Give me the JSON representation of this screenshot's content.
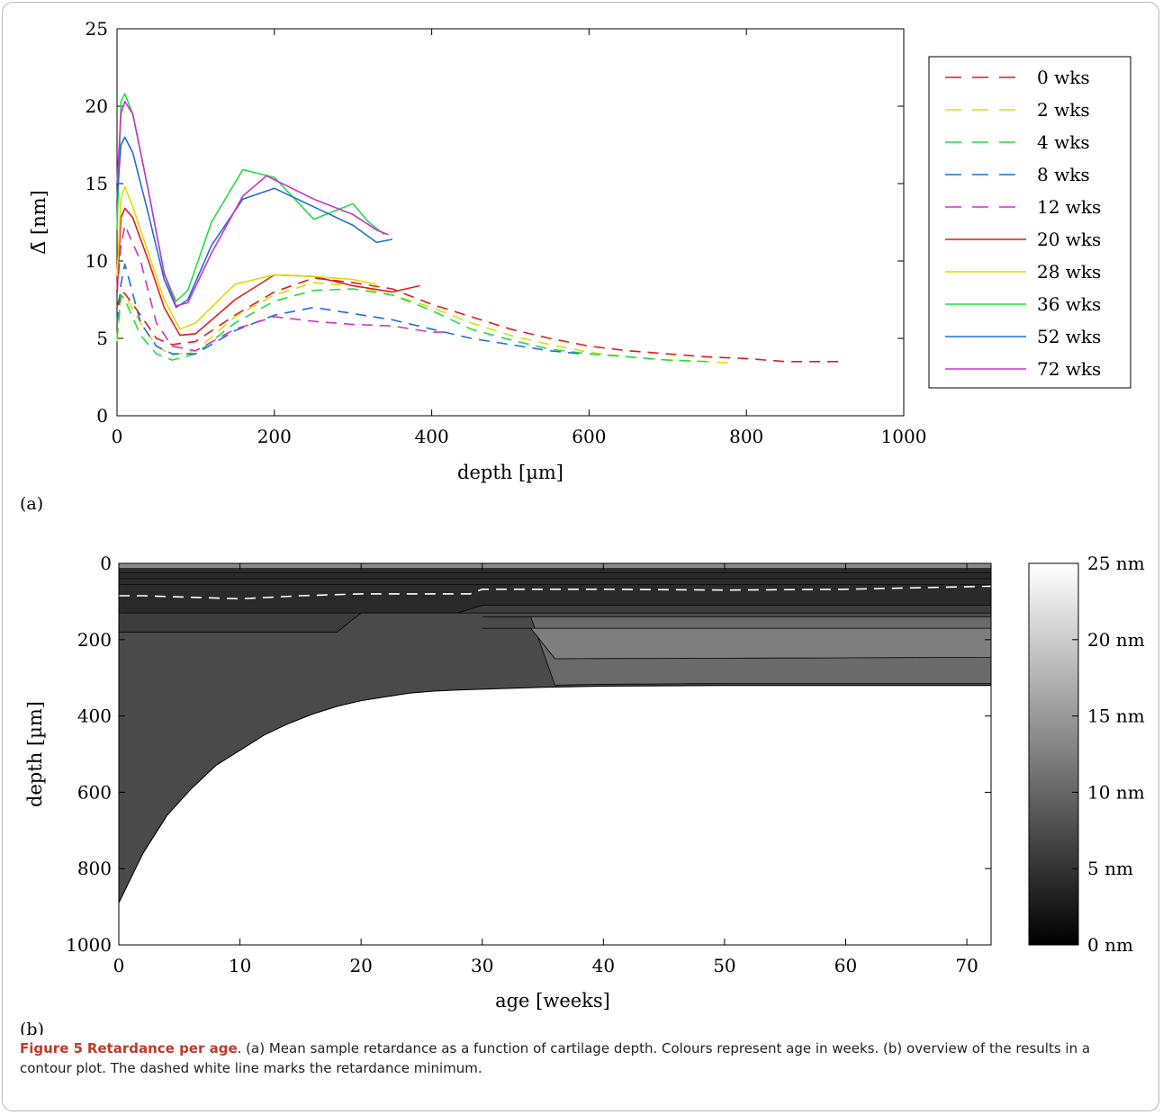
{
  "caption": {
    "figure_label": "Figure 5",
    "title": "Retardance per age",
    "text": ". (a) Mean sample retardance as a function of cartilage depth. Colours represent age in weeks. (b) overview of the results in a contour plot. The dashed white line marks the retardance minimum."
  },
  "chart_data": [
    {
      "panel": "(a)",
      "type": "line",
      "xlabel": "depth [µm]",
      "ylabel": "Δ̄ [nm]",
      "xlim": [
        0,
        1000
      ],
      "ylim": [
        0,
        25
      ],
      "xticks": [
        "0",
        "200",
        "400",
        "600",
        "800",
        "1000"
      ],
      "yticks": [
        "0",
        "5",
        "10",
        "15",
        "20",
        "25"
      ],
      "grid": false,
      "legend": "top-right",
      "series": [
        {
          "name": "0 wks",
          "color": "#e41a1c",
          "dash": "dashed",
          "x": [
            0,
            5,
            10,
            30,
            50,
            70,
            100,
            150,
            200,
            250,
            300,
            350,
            400,
            450,
            500,
            550,
            600,
            650,
            700,
            750,
            800,
            850,
            900,
            920
          ],
          "y": [
            7,
            8,
            7.9,
            6.5,
            5,
            4.6,
            4.8,
            6.5,
            8,
            8.9,
            8.6,
            8.2,
            7.2,
            6.4,
            5.6,
            5.0,
            4.5,
            4.2,
            4.0,
            3.8,
            3.7,
            3.5,
            3.5,
            3.5
          ]
        },
        {
          "name": "2 wks",
          "color": "#d8e000",
          "dash": "dashed",
          "x": [
            0,
            5,
            10,
            30,
            50,
            70,
            100,
            150,
            200,
            250,
            300,
            350,
            400,
            450,
            500,
            550,
            600,
            650,
            700,
            750,
            780
          ],
          "y": [
            4.8,
            7.5,
            7.8,
            6,
            4.5,
            3.9,
            4.2,
            6.4,
            7.8,
            8.6,
            8.4,
            7.8,
            7.0,
            6.0,
            5.2,
            4.6,
            4.1,
            3.8,
            3.6,
            3.5,
            3.4
          ]
        },
        {
          "name": "4 wks",
          "color": "#22dd44",
          "dash": "dashed",
          "x": [
            0,
            5,
            10,
            30,
            50,
            70,
            100,
            150,
            200,
            250,
            300,
            350,
            400,
            450,
            500,
            550,
            600,
            650,
            700,
            750
          ],
          "y": [
            5,
            7.8,
            7.5,
            5.2,
            4.0,
            3.6,
            4.0,
            6.0,
            7.4,
            8.1,
            8.2,
            7.8,
            6.8,
            5.6,
            4.9,
            4.3,
            4.0,
            3.8,
            3.6,
            3.5
          ]
        },
        {
          "name": "8 wks",
          "color": "#1e6fd9",
          "dash": "dashed",
          "x": [
            0,
            5,
            10,
            30,
            50,
            70,
            100,
            150,
            200,
            250,
            300,
            350,
            400,
            450,
            500,
            550,
            590
          ],
          "y": [
            6,
            8.5,
            9.8,
            6.0,
            4.5,
            4.0,
            4.0,
            5.5,
            6.5,
            7.0,
            6.6,
            6.2,
            5.6,
            5.0,
            4.6,
            4.2,
            4.0
          ]
        },
        {
          "name": "12 wks",
          "color": "#cc33cc",
          "dash": "dashed",
          "x": [
            0,
            5,
            10,
            30,
            50,
            70,
            100,
            150,
            200,
            250,
            300,
            350,
            400,
            420
          ],
          "y": [
            8,
            11,
            12.3,
            10.0,
            6.0,
            4.5,
            4.2,
            5.6,
            6.4,
            6.1,
            5.9,
            5.8,
            5.4,
            5.4
          ]
        },
        {
          "name": "20 wks",
          "color": "#e41a1c",
          "dash": "solid",
          "x": [
            0,
            5,
            10,
            20,
            40,
            60,
            80,
            100,
            150,
            200,
            250,
            300,
            350,
            385
          ],
          "y": [
            8,
            12.8,
            13.4,
            12.8,
            10,
            7,
            5.2,
            5.3,
            7.5,
            9.1,
            9.0,
            8.4,
            8.0,
            8.4
          ]
        },
        {
          "name": "28 wks",
          "color": "#d8e000",
          "dash": "solid",
          "x": [
            0,
            5,
            10,
            20,
            40,
            60,
            80,
            100,
            150,
            200,
            250,
            300,
            330
          ],
          "y": [
            9,
            14.0,
            14.8,
            13.5,
            10.5,
            7.5,
            5.6,
            6.0,
            8.5,
            9.1,
            9.0,
            8.8,
            8.5
          ]
        },
        {
          "name": "36 wks",
          "color": "#22dd44",
          "dash": "solid",
          "x": [
            0,
            5,
            10,
            20,
            40,
            60,
            75,
            90,
            120,
            160,
            200,
            250,
            300,
            320,
            340
          ],
          "y": [
            12,
            20.3,
            20.8,
            19.5,
            14.5,
            9.2,
            7.4,
            8.1,
            12.5,
            15.9,
            15.4,
            12.7,
            13.7,
            12.5,
            11.7
          ]
        },
        {
          "name": "52 wks",
          "color": "#1e6fd9",
          "dash": "solid",
          "x": [
            0,
            5,
            10,
            20,
            40,
            60,
            75,
            90,
            120,
            160,
            200,
            250,
            300,
            330,
            350
          ],
          "y": [
            14,
            17.5,
            18.0,
            17.0,
            13.0,
            8.8,
            7.0,
            7.5,
            11.0,
            14.0,
            14.7,
            13.5,
            12.3,
            11.2,
            11.4
          ]
        },
        {
          "name": "72 wks",
          "color": "#cc33cc",
          "dash": "solid",
          "x": [
            0,
            5,
            10,
            20,
            40,
            60,
            75,
            90,
            120,
            160,
            190,
            250,
            300,
            330,
            345
          ],
          "y": [
            15,
            19.5,
            20.3,
            19.5,
            14.5,
            9.2,
            7.1,
            7.3,
            10.5,
            14.2,
            15.5,
            14.0,
            13.0,
            12.0,
            11.7
          ]
        }
      ]
    },
    {
      "panel": "(b)",
      "type": "heatmap",
      "xlabel": "age [weeks]",
      "ylabel": "depth [µm]",
      "xlim": [
        0,
        72
      ],
      "ylim": [
        1000,
        0
      ],
      "xticks": [
        "0",
        "10",
        "20",
        "30",
        "40",
        "50",
        "60",
        "70"
      ],
      "yticks": [
        "0",
        "200",
        "400",
        "600",
        "800",
        "1000"
      ],
      "colorbar": {
        "min": 0,
        "max": 25,
        "ticks": [
          "0 nm",
          "5 nm",
          "10 nm",
          "15 nm",
          "20 nm",
          "25 nm"
        ]
      },
      "max_depth_by_age": {
        "age": [
          0,
          2,
          4,
          6,
          8,
          10,
          12,
          14,
          16,
          18,
          20,
          22,
          24,
          26,
          28,
          30,
          35,
          40,
          50,
          60,
          72
        ],
        "depth": [
          890,
          760,
          660,
          590,
          530,
          490,
          450,
          420,
          395,
          375,
          360,
          350,
          340,
          335,
          332,
          330,
          325,
          322,
          320,
          320,
          320
        ]
      },
      "minimum_line": {
        "age": [
          0,
          2,
          5,
          10,
          15,
          20,
          25,
          29,
          30,
          35,
          40,
          50,
          60,
          72
        ],
        "depth": [
          85,
          85,
          88,
          93,
          85,
          80,
          80,
          80,
          68,
          68,
          68,
          70,
          68,
          60
        ]
      }
    }
  ],
  "panel_labels": {
    "a": "(a)",
    "b": "(b)"
  }
}
